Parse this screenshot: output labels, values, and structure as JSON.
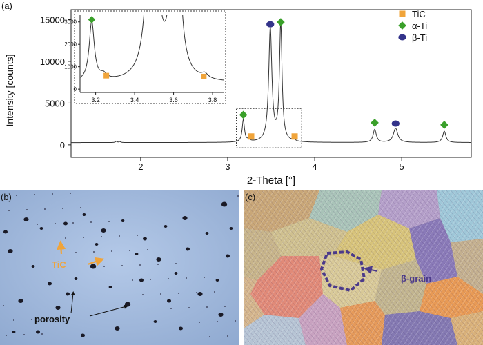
{
  "colors": {
    "axis": "#222222",
    "curve": "#333333",
    "tic": "#f0a43a",
    "alpha_ti": "#3aa02a",
    "beta_ti": "#33338a",
    "micro_bg": "#9fb8dc",
    "arrow_orange": "#f0a43a",
    "beta_outline": "#4b3a8a"
  },
  "panel_a": {
    "label": "(a)",
    "chart_data": {
      "type": "line",
      "title": "",
      "xlabel": "2-Theta [°]",
      "ylabel": "Intensity [counts]",
      "xlim": [
        1.2,
        5.8
      ],
      "ylim": [
        -1500,
        16200
      ],
      "xticks": [
        {
          "value": 2,
          "label": "2"
        },
        {
          "value": 3,
          "label": "3"
        },
        {
          "value": 4,
          "label": "4"
        },
        {
          "value": 5,
          "label": "5"
        }
      ],
      "yticks": [
        {
          "value": 0,
          "label": "0"
        },
        {
          "value": 5000,
          "label": "5000"
        },
        {
          "value": 10000,
          "label": "10000"
        },
        {
          "value": 15000,
          "label": "15000"
        }
      ],
      "baseline": 270,
      "peaks": [
        {
          "x": 1.72,
          "height": 140,
          "width": 0.012
        },
        {
          "x": 1.76,
          "height": 110,
          "width": 0.012
        },
        {
          "x": 3.18,
          "height": 2650,
          "width": 0.016
        },
        {
          "x": 3.24,
          "height": 230,
          "width": 0.02
        },
        {
          "x": 3.49,
          "height": 13550,
          "width": 0.022
        },
        {
          "x": 3.61,
          "height": 14050,
          "width": 0.018
        },
        {
          "x": 3.76,
          "height": 200,
          "width": 0.02
        },
        {
          "x": 4.69,
          "height": 1550,
          "width": 0.022
        },
        {
          "x": 4.93,
          "height": 1700,
          "width": 0.03
        },
        {
          "x": 5.49,
          "height": 1350,
          "width": 0.022
        }
      ],
      "markers": [
        {
          "phase": "α-Ti",
          "x": 3.18,
          "y": 3600
        },
        {
          "phase": "TiC",
          "x": 3.27,
          "y": 1000
        },
        {
          "phase": "β-Ti",
          "x": 3.49,
          "y": 14450
        },
        {
          "phase": "α-Ti",
          "x": 3.61,
          "y": 14700
        },
        {
          "phase": "TiC",
          "x": 3.77,
          "y": 1000
        },
        {
          "phase": "α-Ti",
          "x": 4.69,
          "y": 2650
        },
        {
          "phase": "β-Ti",
          "x": 4.93,
          "y": 2550
        },
        {
          "phase": "α-Ti",
          "x": 5.49,
          "y": 2400
        }
      ],
      "zoom_box": {
        "x": [
          3.1,
          3.85
        ],
        "y": [
          -350,
          4350
        ]
      },
      "legend": [
        {
          "name": "TiC",
          "marker": "square",
          "color": "#f0a43a"
        },
        {
          "name": "α-Ti",
          "marker": "diamond",
          "color": "#3aa02a"
        },
        {
          "name": "β-Ti",
          "marker": "circle",
          "color": "#33338a"
        }
      ],
      "legend_position": "top-right",
      "inset": {
        "xlim": [
          3.12,
          3.86
        ],
        "ylim": [
          -150,
          3300
        ],
        "xticks": [
          {
            "value": 3.2,
            "label": "3.2"
          },
          {
            "value": 3.4,
            "label": "3.4"
          },
          {
            "value": 3.6,
            "label": "3.6"
          },
          {
            "value": 3.8,
            "label": "3.8"
          }
        ],
        "yticks": [
          {
            "value": 0,
            "label": "0"
          },
          {
            "value": 1000,
            "label": "1000"
          },
          {
            "value": 2000,
            "label": "2000"
          },
          {
            "value": 3000,
            "label": "3000"
          }
        ],
        "markers": [
          {
            "phase": "α-Ti",
            "x": 3.18,
            "y": 3100
          },
          {
            "phase": "TiC",
            "x": 3.255,
            "y": 600
          },
          {
            "phase": "TiC",
            "x": 3.755,
            "y": 560
          }
        ]
      }
    }
  },
  "panel_b": {
    "label": "(b)",
    "annotations": {
      "tic": "TiC",
      "porosity": "porosity"
    }
  },
  "panel_c": {
    "label": "(c)",
    "annotations": {
      "beta_grain": "β-grain"
    }
  }
}
